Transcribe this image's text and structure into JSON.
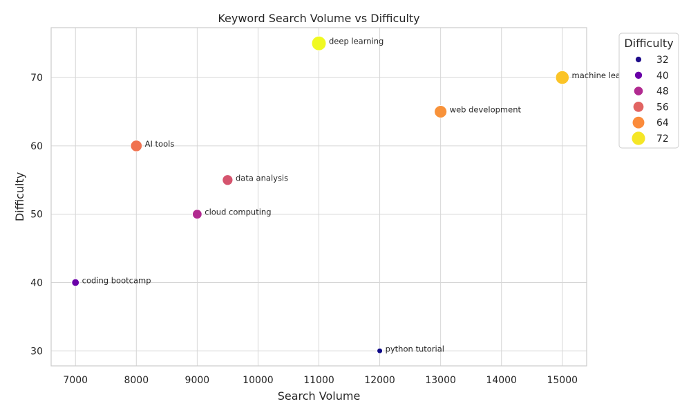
{
  "chart_data": {
    "type": "scatter",
    "title": "Keyword Search Volume vs Difficulty",
    "xlabel": "Search Volume",
    "ylabel": "Difficulty",
    "xlim": [
      6600,
      15400
    ],
    "ylim": [
      27.8,
      77.3
    ],
    "xticks": [
      7000,
      8000,
      9000,
      10000,
      11000,
      12000,
      13000,
      14000,
      15000
    ],
    "yticks": [
      30,
      40,
      50,
      60,
      70
    ],
    "grid": true,
    "legend": {
      "title": "Difficulty",
      "placement": "outside-top-right",
      "entries": [
        {
          "label": "32",
          "value": 32,
          "color": "#1f0c8a"
        },
        {
          "label": "40",
          "value": 40,
          "color": "#6a00a8"
        },
        {
          "label": "48",
          "value": 48,
          "color": "#b12a90"
        },
        {
          "label": "56",
          "value": 56,
          "color": "#e16462"
        },
        {
          "label": "64",
          "value": 64,
          "color": "#fb8b3b"
        },
        {
          "label": "72",
          "value": 72,
          "color": "#f5e626"
        }
      ]
    },
    "points": [
      {
        "keyword": "python tutorial",
        "x": 12000,
        "y": 30,
        "color": "#0d0887"
      },
      {
        "keyword": "coding bootcamp",
        "x": 7000,
        "y": 40,
        "color": "#6a00a8"
      },
      {
        "keyword": "cloud computing",
        "x": 9000,
        "y": 50,
        "color": "#b12a90"
      },
      {
        "keyword": "data analysis",
        "x": 9500,
        "y": 55,
        "color": "#d5546e"
      },
      {
        "keyword": "AI tools",
        "x": 8000,
        "y": 60,
        "color": "#f0724f"
      },
      {
        "keyword": "web development",
        "x": 13000,
        "y": 65,
        "color": "#f8923a"
      },
      {
        "keyword": "machine learning",
        "x": 15000,
        "y": 70,
        "color": "#fbc427"
      },
      {
        "keyword": "deep learning",
        "x": 11000,
        "y": 75,
        "color": "#f0f921"
      }
    ]
  }
}
